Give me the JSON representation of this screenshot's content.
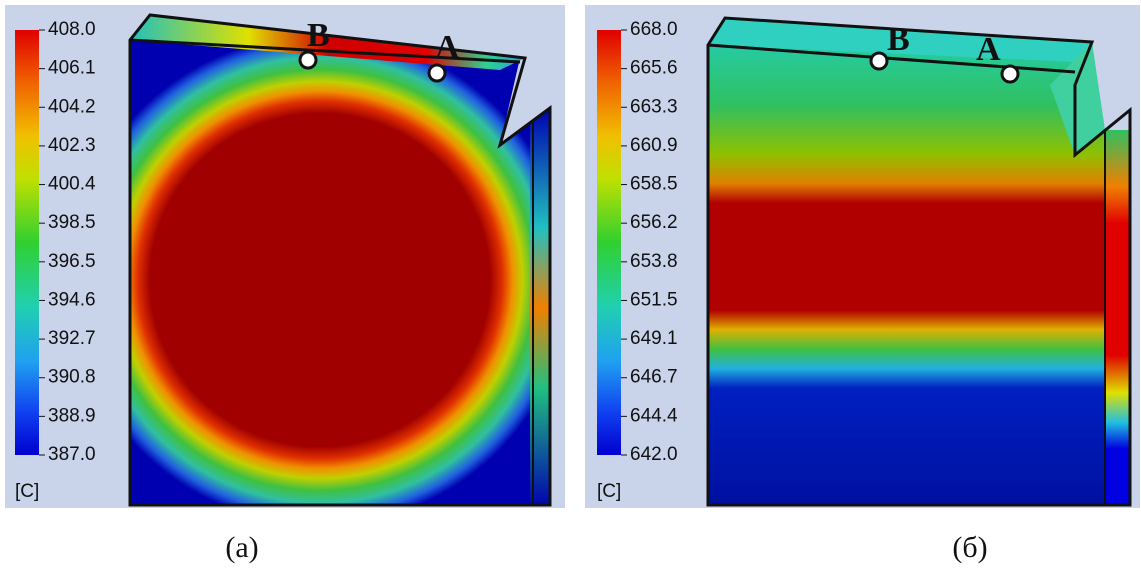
{
  "panels": [
    {
      "colorbar": {
        "ticks": [
          "408.0",
          "406.1",
          "404.2",
          "402.3",
          "400.4",
          "398.5",
          "396.5",
          "394.6",
          "392.7",
          "390.8",
          "388.9",
          "387.0"
        ],
        "unit": "[C]"
      },
      "points": {
        "a": "A",
        "b": "B"
      },
      "caption": "(а)"
    },
    {
      "colorbar": {
        "ticks": [
          "668.0",
          "665.6",
          "663.3",
          "660.9",
          "658.5",
          "656.2",
          "653.8",
          "651.5",
          "649.1",
          "646.7",
          "644.4",
          "642.0"
        ],
        "unit": "[C]"
      },
      "points": {
        "a": "A",
        "b": "B"
      },
      "caption": "(б)"
    }
  ]
}
